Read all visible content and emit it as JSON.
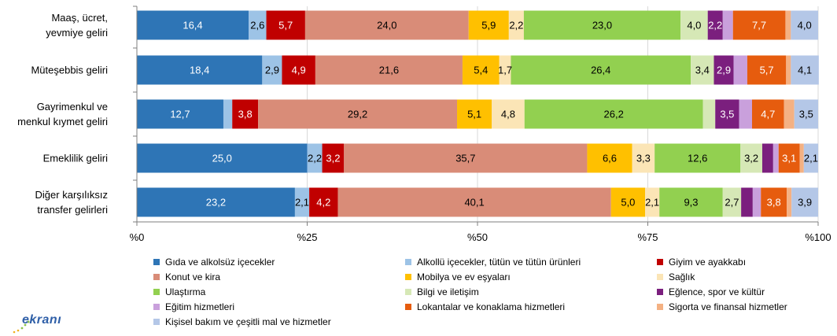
{
  "chart_data": {
    "type": "bar",
    "orientation": "horizontal",
    "stacked": true,
    "percent": true,
    "categories": [
      "Maaş, ücret,\nyevmiye geliri",
      "Müteşebbis geliri",
      "Gayrimenkul ve\nmenkul kıymet geliri",
      "Emeklilik geliri",
      "Diğer karşılıksız\ntransfer gelirleri"
    ],
    "xlim": [
      0,
      100
    ],
    "x_ticks": [
      "%0",
      "%25",
      "%50",
      "%75",
      "%100"
    ],
    "legend_position": "bottom",
    "series": [
      {
        "name": "Gıda ve alkolsüz içecekler",
        "color": "#2e75b6",
        "values": [
          16.4,
          18.4,
          12.7,
          25.0,
          23.2
        ],
        "labels": [
          "16,4",
          "18,4",
          "12,7",
          "25,0",
          "23,2"
        ]
      },
      {
        "name": "Alkollü içecekler, tütün ve tütün ürünleri",
        "color": "#9dc3e6",
        "values": [
          2.6,
          2.9,
          1.3,
          2.2,
          2.1
        ],
        "labels": [
          "2,6",
          "2,9",
          "",
          "2,2",
          "2,1"
        ]
      },
      {
        "name": "Giyim ve ayakkabı",
        "color": "#c00000",
        "values": [
          5.7,
          4.9,
          3.8,
          3.2,
          4.2
        ],
        "labels": [
          "5,7",
          "4,9",
          "3,8",
          "3,2",
          "4,2"
        ]
      },
      {
        "name": "Konut ve kira",
        "color": "#d98c78",
        "values": [
          24.0,
          21.6,
          29.2,
          35.7,
          40.1
        ],
        "labels": [
          "24,0",
          "21,6",
          "29,2",
          "35,7",
          "40,1"
        ]
      },
      {
        "name": "Mobilya ve ev eşyaları",
        "color": "#ffc000",
        "values": [
          5.9,
          5.4,
          5.1,
          6.6,
          5.0
        ],
        "labels": [
          "5,9",
          "5,4",
          "5,1",
          "6,6",
          "5,0"
        ]
      },
      {
        "name": "Sağlık",
        "color": "#fbe5b6",
        "values": [
          2.2,
          1.7,
          4.8,
          3.3,
          2.1
        ],
        "labels": [
          "2,2",
          "1,7",
          "4,8",
          "3,3",
          "2,1"
        ]
      },
      {
        "name": "Ulaştırma",
        "color": "#92d050",
        "values": [
          23.0,
          26.4,
          26.2,
          12.6,
          9.3
        ],
        "labels": [
          "23,0",
          "26,4",
          "26,2",
          "12,6",
          "9,3"
        ]
      },
      {
        "name": "Bilgi ve iletişim",
        "color": "#d6e8b6",
        "values": [
          4.0,
          3.4,
          1.8,
          3.2,
          2.7
        ],
        "labels": [
          "4,0",
          "3,4",
          "",
          "3,2",
          "2,7"
        ]
      },
      {
        "name": "Eğlence, spor ve kültür",
        "color": "#7b1f7e",
        "values": [
          2.2,
          2.9,
          3.5,
          1.6,
          1.7
        ],
        "labels": [
          "2,2",
          "2,9",
          "3,5",
          "",
          ""
        ]
      },
      {
        "name": "Eğitim hizmetleri",
        "color": "#c9a0dc",
        "values": [
          1.5,
          2.0,
          1.9,
          0.8,
          1.2
        ],
        "labels": [
          "",
          "",
          "",
          "",
          ""
        ]
      },
      {
        "name": "Lokantalar ve konaklama hizmetleri",
        "color": "#e65c0e",
        "values": [
          7.7,
          5.7,
          4.7,
          3.1,
          3.8
        ],
        "labels": [
          "7,7",
          "5,7",
          "4,7",
          "3,1",
          "3,8"
        ]
      },
      {
        "name": "Sigorta ve finansal hizmetler",
        "color": "#f4b183",
        "values": [
          0.8,
          0.7,
          1.5,
          0.6,
          0.7
        ],
        "labels": [
          "",
          "",
          "",
          "",
          ""
        ]
      },
      {
        "name": "Kişisel bakım ve çeşitli mal ve hizmetler",
        "color": "#b4c7e7",
        "values": [
          4.0,
          4.1,
          3.5,
          2.1,
          3.9
        ],
        "labels": [
          "4,0",
          "4,1",
          "3,5",
          "2,1",
          "3,9"
        ]
      }
    ]
  },
  "logo": {
    "text": "ekranı"
  }
}
